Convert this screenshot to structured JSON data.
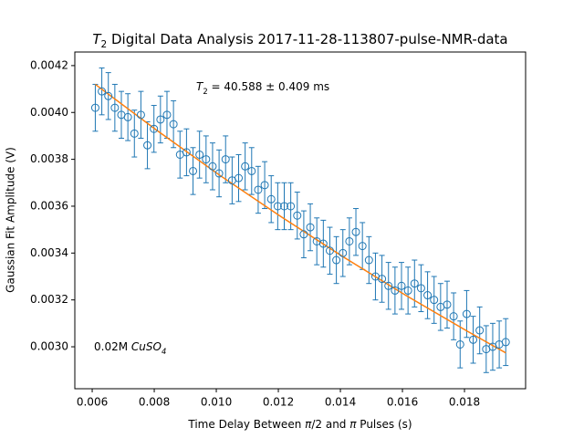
{
  "chart_data": {
    "type": "scatter",
    "title": {
      "segments": [
        {
          "text": "T",
          "style": "italic"
        },
        {
          "text": "2",
          "style": "sub"
        },
        {
          "text": " Digital Data Analysis 2017-11-28-113807-pulse-NMR-data"
        }
      ]
    },
    "xlabel": {
      "segments": [
        {
          "text": "Time Delay Between "
        },
        {
          "text": "π",
          "style": "italic"
        },
        {
          "text": "/2 and "
        },
        {
          "text": "π",
          "style": "italic"
        },
        {
          "text": " Pulses (s)"
        }
      ]
    },
    "ylabel": "Gaussian Fit Amplitude (V)",
    "annotations": [
      {
        "segments": [
          {
            "text": "T",
            "style": "italic"
          },
          {
            "text": "2",
            "style": "sub"
          },
          {
            "text": " = 40.588 ± 0.409 ms"
          }
        ]
      },
      {
        "segments": [
          {
            "text": "0.02M "
          },
          {
            "text": "CuSO",
            "style": "italic"
          },
          {
            "text": "4",
            "style": "italic-sub"
          }
        ]
      }
    ],
    "x": [
      0.0061,
      0.00631,
      0.00652,
      0.00673,
      0.00694,
      0.00715,
      0.00736,
      0.00757,
      0.00778,
      0.00799,
      0.0082,
      0.00841,
      0.00862,
      0.00883,
      0.00904,
      0.00925,
      0.00946,
      0.00967,
      0.00988,
      0.01009,
      0.0103,
      0.01051,
      0.01072,
      0.01093,
      0.01114,
      0.01135,
      0.01156,
      0.01177,
      0.01198,
      0.01219,
      0.0124,
      0.01261,
      0.01282,
      0.01303,
      0.01324,
      0.01345,
      0.01366,
      0.01387,
      0.01408,
      0.01429,
      0.0145,
      0.01471,
      0.01492,
      0.01513,
      0.01534,
      0.01555,
      0.01576,
      0.01597,
      0.01618,
      0.01639,
      0.0166,
      0.01681,
      0.01702,
      0.01723,
      0.01744,
      0.01765,
      0.01786,
      0.01807,
      0.01828,
      0.01849,
      0.0187,
      0.01891,
      0.01912,
      0.01933
    ],
    "values": [
      0.00402,
      0.00409,
      0.00407,
      0.00402,
      0.00399,
      0.00398,
      0.00391,
      0.00399,
      0.00386,
      0.00393,
      0.00397,
      0.00399,
      0.00395,
      0.00382,
      0.00383,
      0.00375,
      0.00382,
      0.0038,
      0.00377,
      0.00374,
      0.0038,
      0.00371,
      0.00372,
      0.00377,
      0.00375,
      0.00367,
      0.00369,
      0.00363,
      0.0036,
      0.0036,
      0.0036,
      0.00356,
      0.00348,
      0.00351,
      0.00345,
      0.00344,
      0.00341,
      0.00337,
      0.0034,
      0.00345,
      0.00349,
      0.00343,
      0.00337,
      0.0033,
      0.00329,
      0.00326,
      0.00324,
      0.00326,
      0.00324,
      0.00327,
      0.00325,
      0.00322,
      0.0032,
      0.00317,
      0.00318,
      0.00313,
      0.00301,
      0.00314,
      0.00303,
      0.00307,
      0.00299,
      0.003,
      0.00301,
      0.00302
    ],
    "errors": [
      0.0001,
      0.0001,
      0.0001,
      0.0001,
      0.0001,
      0.0001,
      0.0001,
      0.0001,
      0.0001,
      0.0001,
      0.0001,
      0.0001,
      0.0001,
      0.0001,
      0.0001,
      0.0001,
      0.0001,
      0.0001,
      0.0001,
      0.0001,
      0.0001,
      0.0001,
      0.0001,
      0.0001,
      0.0001,
      0.0001,
      0.0001,
      0.0001,
      0.0001,
      0.0001,
      0.0001,
      0.0001,
      0.0001,
      0.0001,
      0.0001,
      0.0001,
      0.0001,
      0.0001,
      0.0001,
      0.0001,
      0.0001,
      0.0001,
      0.0001,
      0.0001,
      0.0001,
      0.0001,
      0.0001,
      0.0001,
      0.0001,
      0.0001,
      0.0001,
      0.0001,
      0.0001,
      0.0001,
      0.0001,
      0.0001,
      0.0001,
      0.0001,
      0.0001,
      0.0001,
      0.0001,
      0.0001,
      0.0001,
      0.0001
    ],
    "color": "#1f77b4",
    "fit": {
      "x": [
        0.0061,
        0.0081,
        0.0101,
        0.0121,
        0.0141,
        0.0161,
        0.0181,
        0.01933
      ],
      "values": [
        0.00412,
        0.003922,
        0.003733,
        0.003554,
        0.003383,
        0.00322,
        0.003066,
        0.002974
      ],
      "color": "#ff7f0e"
    },
    "xlim": [
      0.00544,
      0.01997
    ],
    "ylim": [
      0.002821,
      0.004258
    ],
    "xticks": [
      0.006,
      0.008,
      {
        "value": 0.01,
        "label": "0.010"
      },
      0.012,
      0.014,
      0.016,
      0.018
    ],
    "yticks": [
      {
        "value": 0.003,
        "label": "0.0030"
      },
      {
        "value": 0.0032,
        "label": "0.0032"
      },
      {
        "value": 0.0034,
        "label": "0.0034"
      },
      {
        "value": 0.0036,
        "label": "0.0036"
      },
      {
        "value": 0.0038,
        "label": "0.0038"
      },
      {
        "value": 0.004,
        "label": "0.0040"
      },
      {
        "value": 0.0042,
        "label": "0.0042"
      }
    ]
  }
}
